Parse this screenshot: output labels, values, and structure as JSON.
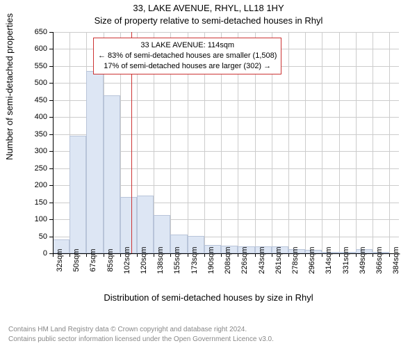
{
  "title_line1": "33, LAKE AVENUE, RHYL, LL18 1HY",
  "title_line2": "Size of property relative to semi-detached houses in Rhyl",
  "y_axis_title": "Number of semi-detached properties",
  "x_axis_title": "Distribution of semi-detached houses by size in Rhyl",
  "attribution_line1": "Contains HM Land Registry data © Crown copyright and database right 2024.",
  "attribution_line2": "Contains public sector information licensed under the Open Government Licence v3.0.",
  "chart": {
    "type": "histogram",
    "background_color": "#ffffff",
    "bar_fill": "#dde6f4",
    "bar_stroke": "#b8c4d9",
    "grid_color": "#cccccc",
    "axis_color": "#000000",
    "reference_line_color": "#cc3333",
    "annotation_border_color": "#cc3333",
    "text_color": "#000000",
    "attribution_color": "#888888",
    "title_fontsize": 13,
    "axis_title_fontsize": 13,
    "tick_fontsize": 11,
    "annotation_fontsize": 11,
    "attribution_fontsize": 10,
    "reference_x_value": 114,
    "annotation": {
      "line1": "33 LAKE AVENUE: 114sqm",
      "line2": "← 83% of semi-detached houses are smaller (1,508)",
      "line3": "17% of semi-detached houses are larger (302) →"
    },
    "x_min": 32,
    "x_max": 394,
    "x_tick_step": 17.6,
    "x_unit_suffix": "sqm",
    "y_min": 0,
    "y_max": 650,
    "y_tick_step": 50,
    "bin_width": 17.6,
    "bins_start": 32,
    "values": [
      40,
      345,
      535,
      463,
      165,
      170,
      112,
      55,
      52,
      25,
      22,
      20,
      20,
      20,
      12,
      10,
      5,
      5,
      12,
      5
    ]
  }
}
